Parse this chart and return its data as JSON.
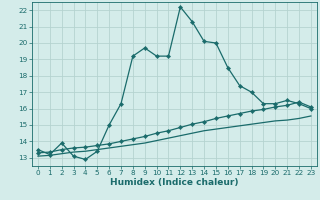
{
  "title": "",
  "xlabel": "Humidex (Indice chaleur)",
  "ylabel": "",
  "xlim": [
    -0.5,
    23.5
  ],
  "ylim": [
    12.5,
    22.5
  ],
  "xticks": [
    0,
    1,
    2,
    3,
    4,
    5,
    6,
    7,
    8,
    9,
    10,
    11,
    12,
    13,
    14,
    15,
    16,
    17,
    18,
    19,
    20,
    21,
    22,
    23
  ],
  "yticks": [
    13,
    14,
    15,
    16,
    17,
    18,
    19,
    20,
    21,
    22
  ],
  "bg_color": "#d4ecea",
  "grid_color": "#b5d3d0",
  "line_color": "#1a6b6b",
  "line1_x": [
    0,
    1,
    2,
    3,
    4,
    5,
    6,
    7,
    8,
    9,
    10,
    11,
    12,
    13,
    14,
    15,
    16,
    17,
    18,
    19,
    20,
    21,
    22,
    23
  ],
  "line1_y": [
    13.5,
    13.2,
    13.9,
    13.1,
    12.9,
    13.4,
    15.0,
    16.3,
    19.2,
    19.7,
    19.2,
    19.2,
    22.2,
    21.3,
    20.1,
    20.0,
    18.5,
    17.4,
    17.0,
    16.3,
    16.3,
    16.5,
    16.3,
    16.0
  ],
  "line2_x": [
    0,
    1,
    2,
    3,
    4,
    5,
    6,
    7,
    8,
    9,
    10,
    11,
    12,
    13,
    14,
    15,
    16,
    17,
    18,
    19,
    20,
    21,
    22,
    23
  ],
  "line2_y": [
    13.3,
    13.35,
    13.5,
    13.6,
    13.65,
    13.75,
    13.85,
    14.0,
    14.15,
    14.3,
    14.5,
    14.65,
    14.85,
    15.05,
    15.2,
    15.4,
    15.55,
    15.7,
    15.85,
    15.95,
    16.1,
    16.2,
    16.4,
    16.1
  ],
  "line3_x": [
    0,
    1,
    2,
    3,
    4,
    5,
    6,
    7,
    8,
    9,
    10,
    11,
    12,
    13,
    14,
    15,
    16,
    17,
    18,
    19,
    20,
    21,
    22,
    23
  ],
  "line3_y": [
    13.1,
    13.15,
    13.25,
    13.35,
    13.4,
    13.5,
    13.6,
    13.7,
    13.8,
    13.9,
    14.05,
    14.2,
    14.35,
    14.5,
    14.65,
    14.75,
    14.85,
    14.95,
    15.05,
    15.15,
    15.25,
    15.3,
    15.4,
    15.55
  ]
}
